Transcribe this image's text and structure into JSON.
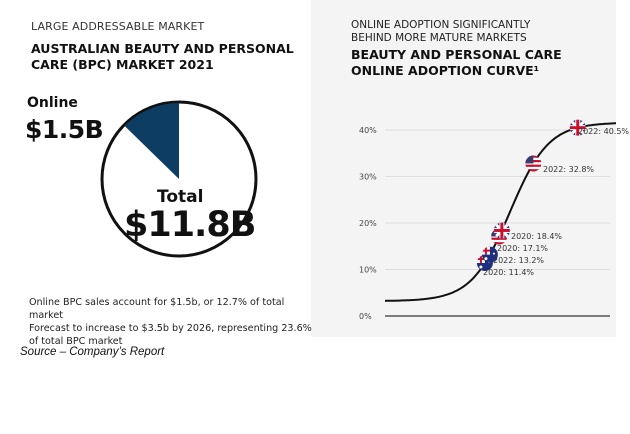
{
  "left": {
    "kicker": "LARGE ADDRESSABLE MARKET",
    "title": "AUSTRALIAN BEAUTY AND PERSONAL CARE (BPC) MARKET 2021",
    "online_label": "Online",
    "online_value": "$1.5B",
    "total_label": "Total",
    "total_value": "$11.8B",
    "description_line1": "Online BPC sales account for $1.5b, or 12.7% of total market",
    "description_line2": "Forecast to increase to $3.5b by 2026, representing 23.6%",
    "description_line3": "of total BPC market"
  },
  "source": "Source – Company’s Report",
  "right": {
    "kicker_line1": "ONLINE ADOPTION SIGNIFICANTLY",
    "kicker_line2": "BEHIND MORE MATURE MARKETS",
    "title_line1": "BEAUTY AND PERSONAL CARE",
    "title_line2": "ONLINE ADOPTION CURVE¹"
  },
  "chart_data": [
    {
      "type": "pie",
      "slices": [
        {
          "label": "Online",
          "value": 1.5,
          "color": "#0e3d63"
        },
        {
          "label": "Total",
          "value": 11.8,
          "color": "#ffffff"
        }
      ],
      "online_share_percent": 12.7
    },
    {
      "type": "line",
      "ylim": [
        0,
        40
      ],
      "yticks": [
        "0%",
        "10%",
        "20%",
        "30%",
        "40%"
      ],
      "grid": true,
      "curve": "s-curve",
      "points": [
        {
          "country": "Australia",
          "flag": "au-flag-icon",
          "label": "2020: 11.4%",
          "value": 11.4
        },
        {
          "country": "Australia",
          "flag": "au-flag-icon",
          "label": "2022: 13.2%",
          "value": 13.2
        },
        {
          "country": "USA",
          "flag": "us-flag-icon",
          "label": "2020: 17.1%",
          "value": 17.1
        },
        {
          "country": "UK",
          "flag": "uk-flag-icon",
          "label": "2020: 18.4%",
          "value": 18.4
        },
        {
          "country": "USA",
          "flag": "us-flag-icon",
          "label": "2022: 32.8%",
          "value": 32.8
        },
        {
          "country": "UK",
          "flag": "uk-flag-icon",
          "label": "2022: 40.5%",
          "value": 40.5
        }
      ]
    }
  ]
}
